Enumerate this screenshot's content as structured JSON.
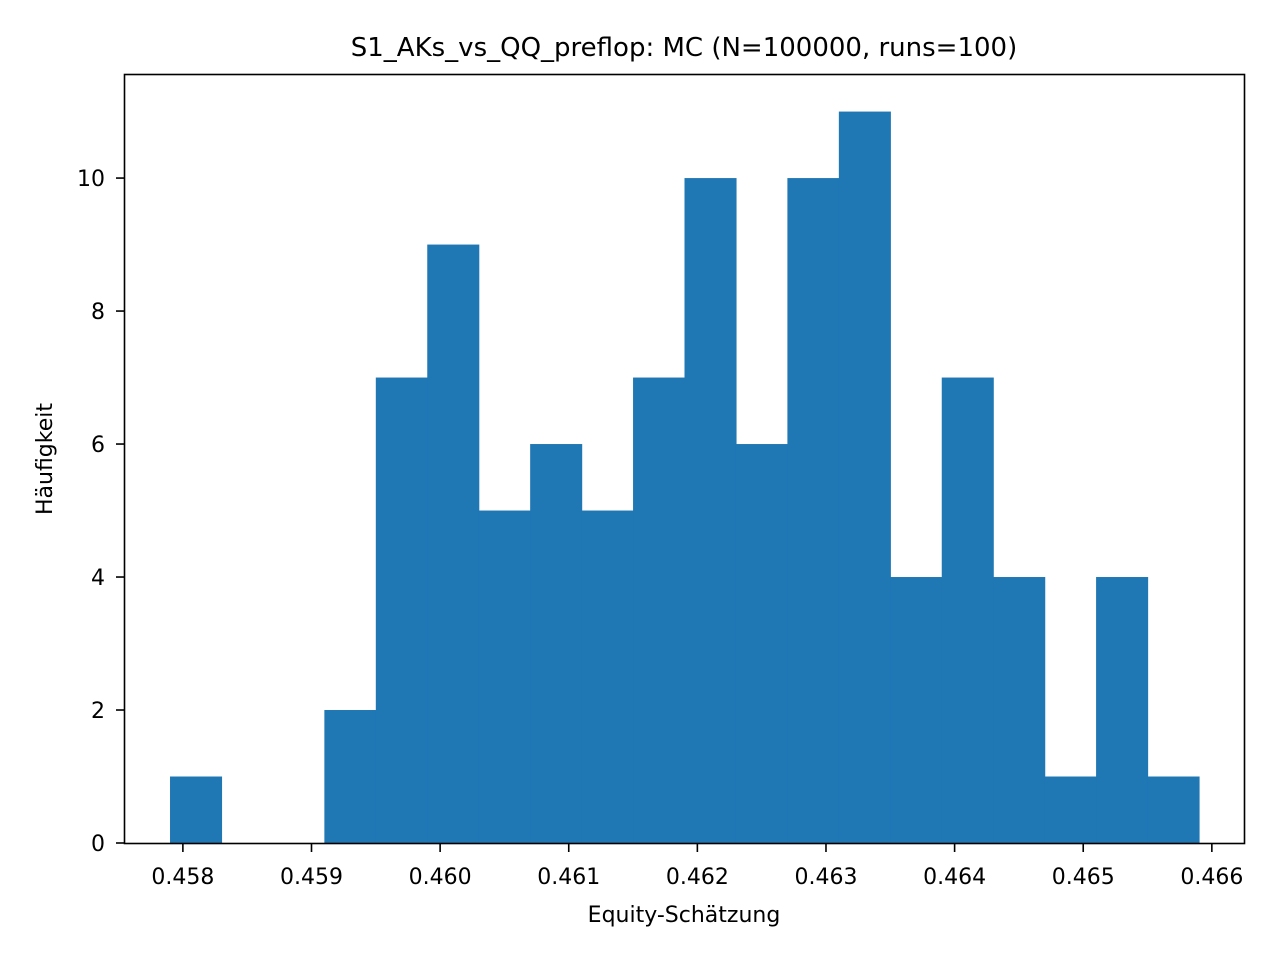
{
  "chart_data": {
    "type": "bar",
    "title": "S1_AKs_vs_QQ_preflop: MC (N=100000, runs=100)",
    "xlabel": "Equity-Schätzung",
    "ylabel": "Häufigkeit",
    "bar_color": "#1f77b4",
    "xlim": [
      0.45755,
      0.46625
    ],
    "ylim": [
      0,
      11.55
    ],
    "xticks": [
      {
        "value": 0.458,
        "label": "0.458"
      },
      {
        "value": 0.459,
        "label": "0.459"
      },
      {
        "value": 0.46,
        "label": "0.460"
      },
      {
        "value": 0.461,
        "label": "0.461"
      },
      {
        "value": 0.462,
        "label": "0.462"
      },
      {
        "value": 0.463,
        "label": "0.463"
      },
      {
        "value": 0.464,
        "label": "0.464"
      },
      {
        "value": 0.465,
        "label": "0.465"
      },
      {
        "value": 0.466,
        "label": "0.466"
      }
    ],
    "yticks": [
      {
        "value": 0,
        "label": "0"
      },
      {
        "value": 2,
        "label": "2"
      },
      {
        "value": 4,
        "label": "4"
      },
      {
        "value": 6,
        "label": "6"
      },
      {
        "value": 8,
        "label": "8"
      },
      {
        "value": 10,
        "label": "10"
      }
    ],
    "bin_edges": [
      0.4579,
      0.4583,
      0.4587,
      0.4591,
      0.4595,
      0.4599,
      0.4603,
      0.4607,
      0.4611,
      0.4615,
      0.4619,
      0.4623,
      0.4627,
      0.4631,
      0.4635,
      0.4639,
      0.4643,
      0.4647,
      0.4651,
      0.4655,
      0.4659
    ],
    "values": [
      1,
      0,
      0,
      2,
      7,
      9,
      5,
      6,
      5,
      7,
      10,
      6,
      10,
      11,
      4,
      7,
      4,
      1,
      4,
      1
    ]
  }
}
